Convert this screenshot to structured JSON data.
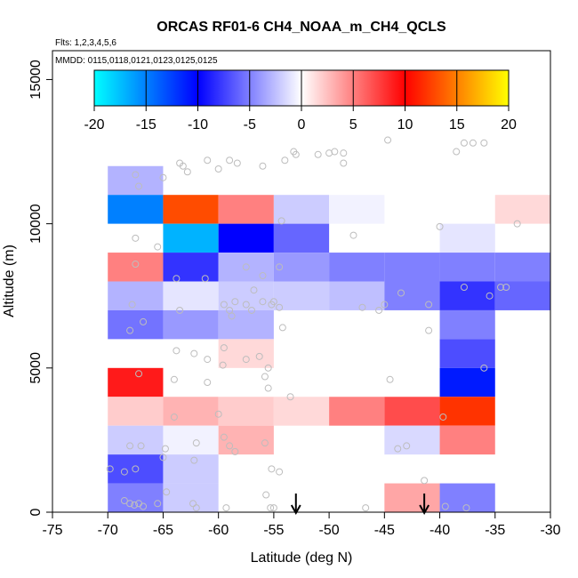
{
  "chart_data": {
    "type": "heatmap",
    "title": "ORCAS RF01-6 CH4_NOAA_m_CH4_QCLS",
    "flights_label": "Flts: 1,2,3,4,5,6",
    "dates_label": "MMDD: 0115,0118,0121,0123,0125,0125",
    "xlabel": "Latitude (deg N)",
    "ylabel": "Altitude (m)",
    "xlim": [
      -75,
      -30
    ],
    "ylim": [
      0,
      16000
    ],
    "x_ticks": [
      -75,
      -70,
      -65,
      -60,
      -55,
      -50,
      -45,
      -40,
      -35,
      -30
    ],
    "y_ticks": [
      0,
      5000,
      10000,
      15000
    ],
    "colorbar": {
      "range": [
        -20,
        20
      ],
      "ticks": [
        -20,
        -15,
        -10,
        -5,
        0,
        5,
        10,
        15,
        20
      ],
      "colors": [
        "#00ffff",
        "#0000ff",
        "#ffffff",
        "#ff0000",
        "#ffff00"
      ]
    },
    "cells": [
      {
        "lat": -70,
        "alt": 11000,
        "value": -3
      },
      {
        "lat": -70,
        "alt": 10000,
        "value": -15
      },
      {
        "lat": -65,
        "alt": 10000,
        "value": 13
      },
      {
        "lat": -60,
        "alt": 10000,
        "value": 5
      },
      {
        "lat": -55,
        "alt": 10000,
        "value": -2
      },
      {
        "lat": -50,
        "alt": 10000,
        "value": -0.5
      },
      {
        "lat": -35,
        "alt": 10000,
        "value": 1.5
      },
      {
        "lat": -65,
        "alt": 9000,
        "value": -17
      },
      {
        "lat": -60,
        "alt": 9000,
        "value": -10
      },
      {
        "lat": -55,
        "alt": 9000,
        "value": -6
      },
      {
        "lat": -40,
        "alt": 9000,
        "value": -1
      },
      {
        "lat": -70,
        "alt": 8000,
        "value": 5
      },
      {
        "lat": -65,
        "alt": 8000,
        "value": -8
      },
      {
        "lat": -60,
        "alt": 8000,
        "value": -3
      },
      {
        "lat": -55,
        "alt": 8000,
        "value": -4
      },
      {
        "lat": -50,
        "alt": 8000,
        "value": -5
      },
      {
        "lat": -45,
        "alt": 8000,
        "value": -5
      },
      {
        "lat": -40,
        "alt": 8000,
        "value": -5
      },
      {
        "lat": -35,
        "alt": 8000,
        "value": -5
      },
      {
        "lat": -70,
        "alt": 7000,
        "value": -3
      },
      {
        "lat": -65,
        "alt": 7000,
        "value": -1
      },
      {
        "lat": -60,
        "alt": 7000,
        "value": -2
      },
      {
        "lat": -55,
        "alt": 7000,
        "value": -2
      },
      {
        "lat": -50,
        "alt": 7000,
        "value": -2.5
      },
      {
        "lat": -45,
        "alt": 7000,
        "value": -5
      },
      {
        "lat": -40,
        "alt": 7000,
        "value": -8
      },
      {
        "lat": -35,
        "alt": 7000,
        "value": -6
      },
      {
        "lat": -70,
        "alt": 6000,
        "value": -5.5
      },
      {
        "lat": -65,
        "alt": 6000,
        "value": -4
      },
      {
        "lat": -60,
        "alt": 6000,
        "value": -3
      },
      {
        "lat": -40,
        "alt": 6000,
        "value": -5
      },
      {
        "lat": -60,
        "alt": 5000,
        "value": 1.5
      },
      {
        "lat": -40,
        "alt": 5000,
        "value": -7
      },
      {
        "lat": -70,
        "alt": 4000,
        "value": 9
      },
      {
        "lat": -40,
        "alt": 4000,
        "value": -11
      },
      {
        "lat": -70,
        "alt": 3000,
        "value": 2
      },
      {
        "lat": -65,
        "alt": 3000,
        "value": 3
      },
      {
        "lat": -60,
        "alt": 3000,
        "value": 2
      },
      {
        "lat": -55,
        "alt": 3000,
        "value": 1.5
      },
      {
        "lat": -50,
        "alt": 3000,
        "value": 5
      },
      {
        "lat": -45,
        "alt": 3000,
        "value": 7
      },
      {
        "lat": -40,
        "alt": 3000,
        "value": 12
      },
      {
        "lat": -70,
        "alt": 2000,
        "value": -2
      },
      {
        "lat": -65,
        "alt": 2000,
        "value": -0.5
      },
      {
        "lat": -60,
        "alt": 2000,
        "value": 3
      },
      {
        "lat": -45,
        "alt": 2000,
        "value": -1.5
      },
      {
        "lat": -40,
        "alt": 2000,
        "value": 5
      },
      {
        "lat": -70,
        "alt": 1000,
        "value": -7
      },
      {
        "lat": -65,
        "alt": 1000,
        "value": -2
      },
      {
        "lat": -70,
        "alt": 0,
        "value": -5
      },
      {
        "lat": -65,
        "alt": 0,
        "value": -2
      },
      {
        "lat": -45,
        "alt": 0,
        "value": 3.5
      },
      {
        "lat": -40,
        "alt": 0,
        "value": -5
      }
    ],
    "points": [
      [
        -67.5,
        11700
      ],
      [
        -67.2,
        11300
      ],
      [
        -63.5,
        12100
      ],
      [
        -63.2,
        12000
      ],
      [
        -62.8,
        11800
      ],
      [
        -61,
        12200
      ],
      [
        -60,
        11900
      ],
      [
        -59,
        12200
      ],
      [
        -58.3,
        12100
      ],
      [
        -56,
        12000
      ],
      [
        -54,
        12200
      ],
      [
        -53.2,
        12500
      ],
      [
        -53,
        12400
      ],
      [
        -51,
        12400
      ],
      [
        -50,
        12450
      ],
      [
        -49.5,
        12500
      ],
      [
        -48.7,
        12450
      ],
      [
        -48.7,
        12100
      ],
      [
        -44.7,
        12900
      ],
      [
        -38.5,
        12500
      ],
      [
        -37.8,
        12800
      ],
      [
        -37,
        12800
      ],
      [
        -36,
        12800
      ],
      [
        -65,
        11600
      ],
      [
        -67.5,
        9500
      ],
      [
        -65.5,
        9200
      ],
      [
        -47.8,
        9600
      ],
      [
        -40,
        9900
      ],
      [
        -33,
        10000
      ],
      [
        -54.3,
        10100
      ],
      [
        -67.5,
        8600
      ],
      [
        -63.8,
        8100
      ],
      [
        -61.2,
        8100
      ],
      [
        -57.5,
        8500
      ],
      [
        -56,
        8200
      ],
      [
        -54.5,
        8500
      ],
      [
        -67.8,
        7200
      ],
      [
        -63.5,
        7000
      ],
      [
        -59.5,
        7200
      ],
      [
        -59,
        7000
      ],
      [
        -58.5,
        7300
      ],
      [
        -57.5,
        7200
      ],
      [
        -57,
        7000
      ],
      [
        -56,
        7300
      ],
      [
        -55.2,
        7200
      ],
      [
        -55,
        7300
      ],
      [
        -54.5,
        7100
      ],
      [
        -47,
        7100
      ],
      [
        -45.5,
        7000
      ],
      [
        -45,
        7200
      ],
      [
        -43.5,
        7600
      ],
      [
        -41,
        7200
      ],
      [
        -37.8,
        7800
      ],
      [
        -35.5,
        7500
      ],
      [
        -34.5,
        7800
      ],
      [
        -34,
        7800
      ],
      [
        -58.8,
        6800
      ],
      [
        -56.8,
        7700
      ],
      [
        -68,
        6300
      ],
      [
        -66.8,
        6600
      ],
      [
        -41,
        6300
      ],
      [
        -54.2,
        6400
      ],
      [
        -63.8,
        5600
      ],
      [
        -62.2,
        5500
      ],
      [
        -61,
        5300
      ],
      [
        -59.5,
        5700
      ],
      [
        -59.6,
        5100
      ],
      [
        -57.5,
        5300
      ],
      [
        -56.3,
        5400
      ],
      [
        -55.5,
        5000
      ],
      [
        -67.2,
        4800
      ],
      [
        -64,
        4600
      ],
      [
        -61,
        4500
      ],
      [
        -55.8,
        4700
      ],
      [
        -55.5,
        4300
      ],
      [
        -53.5,
        4000
      ],
      [
        -44.5,
        4600
      ],
      [
        -36,
        5000
      ],
      [
        -64,
        3300
      ],
      [
        -60,
        3400
      ],
      [
        -39.7,
        3300
      ],
      [
        -68,
        2300
      ],
      [
        -67,
        2300
      ],
      [
        -64.8,
        2200
      ],
      [
        -62,
        2400
      ],
      [
        -59.5,
        2600
      ],
      [
        -59,
        2300
      ],
      [
        -58.5,
        2100
      ],
      [
        -55.8,
        2400
      ],
      [
        -43.8,
        2200
      ],
      [
        -43,
        2300
      ],
      [
        -69.8,
        1500
      ],
      [
        -68.5,
        1400
      ],
      [
        -67.5,
        1500
      ],
      [
        -65,
        1900
      ],
      [
        -62.2,
        1800
      ],
      [
        -68.5,
        400
      ],
      [
        -68,
        300
      ],
      [
        -67.6,
        250
      ],
      [
        -67.2,
        300
      ],
      [
        -66.8,
        200
      ],
      [
        -65.5,
        300
      ],
      [
        -64.7,
        700
      ],
      [
        -62.3,
        300
      ],
      [
        -62,
        150
      ],
      [
        -59.3,
        150
      ],
      [
        -55.7,
        600
      ],
      [
        -55.3,
        150
      ],
      [
        -55,
        150
      ],
      [
        -46.7,
        150
      ],
      [
        -41.4,
        1100
      ],
      [
        -39.5,
        200
      ],
      [
        -37.6,
        150
      ],
      [
        -55.2,
        1500
      ],
      [
        -54.5,
        1400
      ]
    ],
    "arrows": [
      {
        "lat": -53,
        "label": ""
      },
      {
        "lat": -41.4,
        "label": ""
      }
    ]
  }
}
